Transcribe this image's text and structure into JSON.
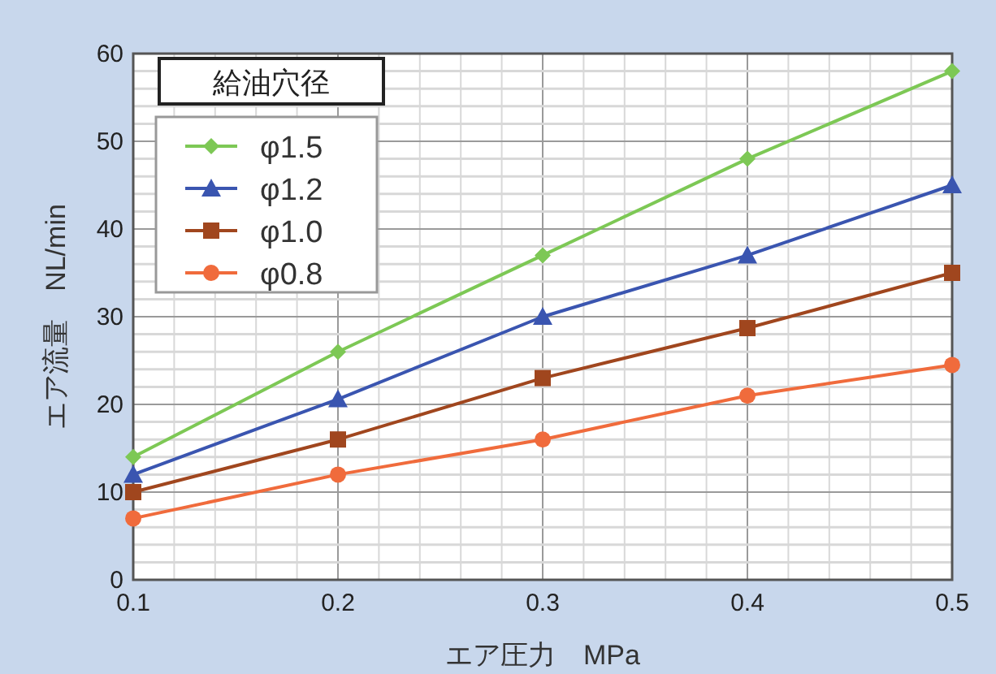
{
  "chart_data": {
    "type": "line",
    "xlabel": "エア圧力　MPa",
    "ylabel": "エア流量　NL/min",
    "legend_title": "給油穴径",
    "legend": "top left",
    "grid": true,
    "x": [
      0.1,
      0.2,
      0.3,
      0.4,
      0.5
    ],
    "xlim": [
      0.1,
      0.5
    ],
    "xticks": [
      0.1,
      0.2,
      0.3,
      0.4,
      0.5
    ],
    "ylim": [
      0,
      60
    ],
    "yticks": [
      0,
      10,
      20,
      30,
      40,
      50,
      60
    ],
    "series": [
      {
        "name": "φ1.5",
        "color": "#7dc855",
        "marker": "diamond",
        "values": [
          14,
          26,
          37,
          48,
          58
        ]
      },
      {
        "name": "φ1.2",
        "color": "#3a55b0",
        "marker": "triangle",
        "values": [
          12,
          20.6,
          30,
          37,
          45
        ]
      },
      {
        "name": "φ1.0",
        "color": "#a0461e",
        "marker": "square",
        "values": [
          10,
          16,
          23,
          28.7,
          35
        ]
      },
      {
        "name": "φ0.8",
        "color": "#f06b3c",
        "marker": "circle",
        "values": [
          7,
          12,
          16,
          21,
          24.5
        ]
      }
    ]
  }
}
